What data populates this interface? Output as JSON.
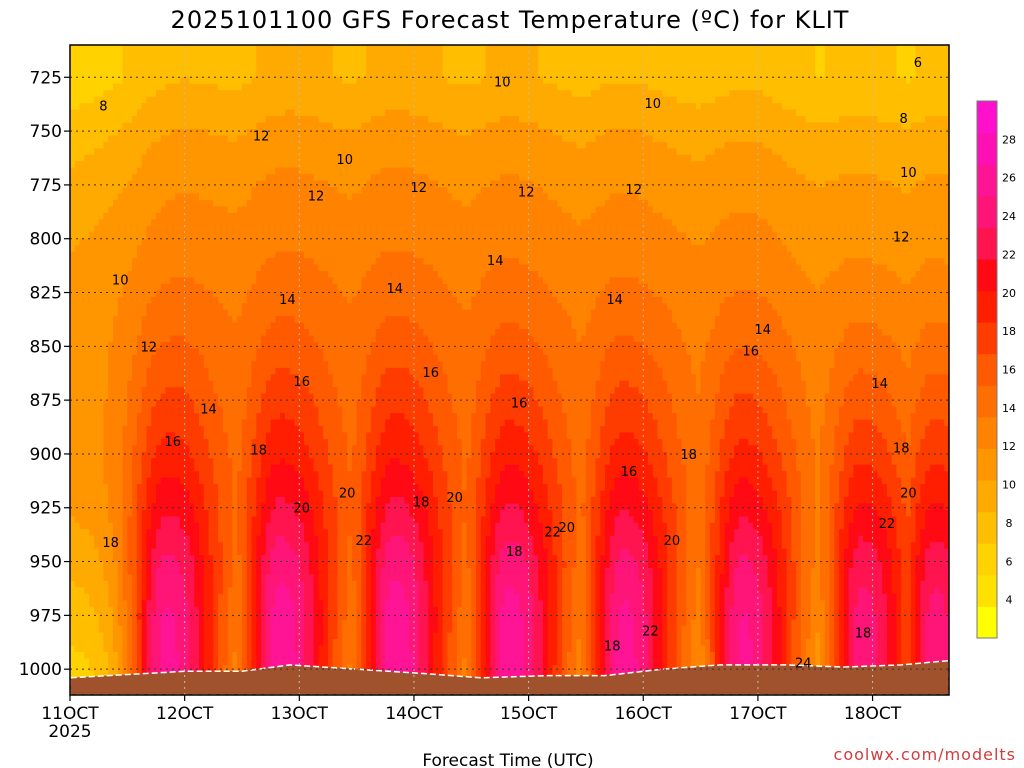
{
  "chart_data": {
    "type": "heatmap",
    "title": "2025101100 GFS Forecast Temperature (ºC) for KLIT",
    "xlabel": "Forecast Time (UTC)",
    "ylabel": "",
    "credit": "coolwx.com/modelts",
    "x_ticks": [
      {
        "label": "11OCT",
        "sub": "2025",
        "value": 0
      },
      {
        "label": "12OCT",
        "value": 24
      },
      {
        "label": "13OCT",
        "value": 48
      },
      {
        "label": "14OCT",
        "value": 72
      },
      {
        "label": "15OCT",
        "value": 96
      },
      {
        "label": "16OCT",
        "value": 120
      },
      {
        "label": "17OCT",
        "value": 144
      },
      {
        "label": "18OCT",
        "value": 168
      }
    ],
    "xlim": [
      0,
      184
    ],
    "y_ticks": [
      "725",
      "750",
      "775",
      "800",
      "825",
      "850",
      "875",
      "900",
      "925",
      "950",
      "975",
      "1000"
    ],
    "ylim": [
      710,
      1012
    ],
    "colorbar": {
      "ticks": [
        "4",
        "6",
        "8",
        "10",
        "12",
        "14",
        "16",
        "18",
        "20",
        "22",
        "24",
        "26",
        "28"
      ],
      "range": [
        2,
        30
      ],
      "colors": [
        "#ffff00",
        "#ffe100",
        "#ffd200",
        "#ffbe00",
        "#ffaa00",
        "#ff9600",
        "#ff8200",
        "#ff6e00",
        "#ff5a00",
        "#ff3c00",
        "#ff1e00",
        "#ff0a14",
        "#ff1450",
        "#ff1478",
        "#ff1496",
        "#ff10b4",
        "#ff10cc"
      ]
    },
    "profile_y": [
      725,
      750,
      775,
      800,
      825,
      850,
      875,
      900,
      925,
      950,
      975,
      1000
    ],
    "base_profile": [
      8.5,
      10.5,
      12,
      13,
      14,
      15,
      16,
      17,
      18,
      18.5,
      18.5,
      18
    ],
    "diurnal_amp": [
      0.5,
      0.5,
      0.5,
      0.5,
      0.8,
      1.5,
      2.5,
      3.5,
      5,
      7,
      8.5,
      9.5
    ],
    "peak_hours": [
      20,
      44,
      68,
      92,
      116,
      141,
      166,
      181
    ],
    "trend_by_day": [
      -2.0,
      0.0,
      0.5,
      0.5,
      0.2,
      -0.2,
      -0.5,
      -1.5
    ],
    "contour_labels": [
      {
        "text": "8",
        "x": 7,
        "y": 738
      },
      {
        "text": "6",
        "x": 177.5,
        "y": 718
      },
      {
        "text": "8",
        "x": 174.5,
        "y": 744
      },
      {
        "text": "10",
        "x": 10.5,
        "y": 819
      },
      {
        "text": "10",
        "x": 57.5,
        "y": 763
      },
      {
        "text": "10",
        "x": 90.5,
        "y": 727
      },
      {
        "text": "10",
        "x": 122,
        "y": 737
      },
      {
        "text": "10",
        "x": 175.5,
        "y": 769
      },
      {
        "text": "12",
        "x": 40,
        "y": 752
      },
      {
        "text": "12",
        "x": 51.5,
        "y": 780
      },
      {
        "text": "12",
        "x": 73,
        "y": 776
      },
      {
        "text": "12",
        "x": 95.5,
        "y": 778
      },
      {
        "text": "12",
        "x": 118,
        "y": 777
      },
      {
        "text": "12",
        "x": 174,
        "y": 799
      },
      {
        "text": "12",
        "x": 16.5,
        "y": 850
      },
      {
        "text": "14",
        "x": 29,
        "y": 879
      },
      {
        "text": "14",
        "x": 45.5,
        "y": 828
      },
      {
        "text": "14",
        "x": 68,
        "y": 823
      },
      {
        "text": "14",
        "x": 89,
        "y": 810
      },
      {
        "text": "14",
        "x": 114,
        "y": 828
      },
      {
        "text": "14",
        "x": 145,
        "y": 842
      },
      {
        "text": "14",
        "x": 169.5,
        "y": 867
      },
      {
        "text": "16",
        "x": 21.5,
        "y": 894
      },
      {
        "text": "16",
        "x": 48.5,
        "y": 866
      },
      {
        "text": "16",
        "x": 75.5,
        "y": 862
      },
      {
        "text": "16",
        "x": 94,
        "y": 876
      },
      {
        "text": "16",
        "x": 117,
        "y": 908
      },
      {
        "text": "16",
        "x": 142.5,
        "y": 852
      },
      {
        "text": "18",
        "x": 8.5,
        "y": 941
      },
      {
        "text": "18",
        "x": 39.5,
        "y": 898
      },
      {
        "text": "18",
        "x": 73.5,
        "y": 922
      },
      {
        "text": "18",
        "x": 93,
        "y": 945
      },
      {
        "text": "18",
        "x": 113.5,
        "y": 989
      },
      {
        "text": "18",
        "x": 129.5,
        "y": 900
      },
      {
        "text": "18",
        "x": 166,
        "y": 983
      },
      {
        "text": "18",
        "x": 174,
        "y": 897
      },
      {
        "text": "20",
        "x": 48.5,
        "y": 925
      },
      {
        "text": "20",
        "x": 58,
        "y": 918
      },
      {
        "text": "20",
        "x": 80.5,
        "y": 920
      },
      {
        "text": "20",
        "x": 104,
        "y": 934
      },
      {
        "text": "20",
        "x": 126,
        "y": 940
      },
      {
        "text": "20",
        "x": 175.5,
        "y": 918
      },
      {
        "text": "22",
        "x": 61.5,
        "y": 940
      },
      {
        "text": "22",
        "x": 101,
        "y": 936
      },
      {
        "text": "22",
        "x": 121.5,
        "y": 982
      },
      {
        "text": "22",
        "x": 171,
        "y": 932
      },
      {
        "text": "24",
        "x": 153.5,
        "y": 997
      }
    ],
    "terrain": {
      "color": "#a0522d",
      "points": [
        [
          0,
          1004
        ],
        [
          8,
          1003
        ],
        [
          24,
          1001
        ],
        [
          36,
          1001
        ],
        [
          46,
          998
        ],
        [
          60,
          1000
        ],
        [
          74,
          1002
        ],
        [
          86,
          1004
        ],
        [
          100,
          1003
        ],
        [
          112,
          1003
        ],
        [
          124,
          1000
        ],
        [
          136,
          998
        ],
        [
          150,
          998
        ],
        [
          162,
          999
        ],
        [
          174,
          998
        ],
        [
          184,
          996
        ]
      ]
    }
  }
}
